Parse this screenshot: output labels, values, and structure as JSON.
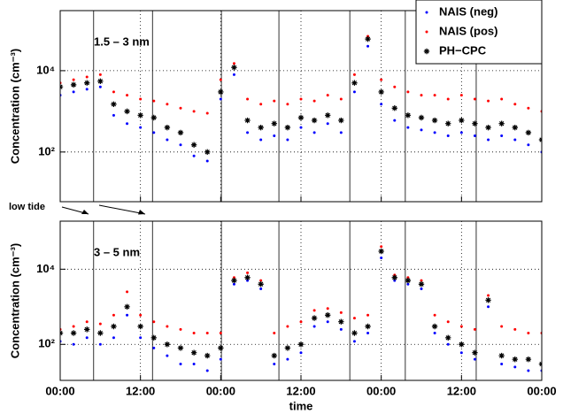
{
  "chart_data": [
    {
      "type": "scatter",
      "panel_label": "1.5 – 3 nm",
      "ylabel": "Concentration (cm⁻³)",
      "log_y": true,
      "grid": true,
      "legend": "upper right",
      "ylim": [
        6,
        300000
      ],
      "yticks": [
        {
          "value": 100,
          "label": "10²"
        },
        {
          "value": 10000,
          "label": "10⁴"
        }
      ],
      "xlim": [
        0,
        72
      ],
      "x": [
        0,
        2,
        4,
        6,
        8,
        10,
        12,
        14,
        16,
        18,
        20,
        22,
        24,
        26,
        28,
        30,
        32,
        34,
        36,
        38,
        40,
        42,
        44,
        46,
        48,
        50,
        52,
        54,
        56,
        58,
        60,
        62,
        64,
        66,
        68,
        70,
        72
      ],
      "series": [
        {
          "name": "NAIS (neg)",
          "color": "#0000ff",
          "marker": "dot",
          "values": [
            2500,
            3000,
            3500,
            4000,
            800,
            500,
            400,
            300,
            200,
            150,
            80,
            60,
            2000,
            8000,
            300,
            200,
            250,
            200,
            400,
            300,
            500,
            300,
            3000,
            40000,
            1500,
            600,
            400,
            350,
            300,
            250,
            300,
            250,
            200,
            250,
            200,
            150,
            100
          ]
        },
        {
          "name": "NAIS (pos)",
          "color": "#ff0000",
          "marker": "dot",
          "values": [
            5000,
            6000,
            7000,
            8000,
            3000,
            2500,
            2000,
            1800,
            1500,
            1200,
            1000,
            900,
            6000,
            15000,
            2000,
            1500,
            1800,
            1500,
            2000,
            1800,
            2500,
            2000,
            8000,
            70000,
            6000,
            4000,
            3000,
            2500,
            2500,
            2000,
            2500,
            2000,
            1800,
            2000,
            1500,
            1200,
            1000
          ]
        },
        {
          "name": "PH−CPC",
          "color": "#000000",
          "marker": "asterisk",
          "values": [
            4000,
            4500,
            5000,
            5500,
            1500,
            1000,
            800,
            700,
            400,
            300,
            150,
            100,
            3000,
            12000,
            600,
            400,
            500,
            400,
            700,
            600,
            800,
            600,
            5000,
            60000,
            3000,
            1200,
            800,
            700,
            600,
            500,
            600,
            500,
            400,
            500,
            400,
            300,
            200
          ]
        }
      ]
    },
    {
      "type": "scatter",
      "panel_label": "3 – 5 nm",
      "ylabel": "Concentration (cm⁻³)",
      "xlabel": "time",
      "log_y": true,
      "grid": true,
      "ylim": [
        11,
        190000
      ],
      "yticks": [
        {
          "value": 100,
          "label": "10²"
        },
        {
          "value": 10000,
          "label": "10⁴"
        }
      ],
      "xlim": [
        0,
        72
      ],
      "xticks": [
        {
          "value": 0,
          "label": "00:00"
        },
        {
          "value": 12,
          "label": "12:00"
        },
        {
          "value": 24,
          "label": "00:00"
        },
        {
          "value": 36,
          "label": "12:00"
        },
        {
          "value": 48,
          "label": "00:00"
        },
        {
          "value": 60,
          "label": "12:00"
        },
        {
          "value": 72,
          "label": "00:00"
        }
      ],
      "x": [
        0,
        2,
        4,
        6,
        8,
        10,
        12,
        14,
        16,
        18,
        20,
        22,
        24,
        26,
        28,
        30,
        32,
        34,
        36,
        38,
        40,
        42,
        44,
        46,
        48,
        50,
        52,
        54,
        56,
        58,
        60,
        62,
        64,
        66,
        68,
        70,
        72
      ],
      "series": [
        {
          "color": "#0000ff",
          "marker": "dot",
          "values": [
            120,
            100,
            150,
            100,
            150,
            600,
            150,
            80,
            50,
            30,
            30,
            20,
            40,
            4000,
            5000,
            3000,
            30,
            40,
            60,
            300,
            400,
            250,
            120,
            200,
            20000,
            5000,
            4000,
            3000,
            200,
            100,
            60,
            40,
            1000,
            30,
            25,
            20,
            20
          ]
        },
        {
          "color": "#ff0000",
          "marker": "dot",
          "values": [
            250,
            300,
            400,
            350,
            600,
            2500,
            600,
            400,
            300,
            250,
            200,
            200,
            200,
            6000,
            8000,
            5000,
            200,
            300,
            400,
            800,
            900,
            700,
            500,
            600,
            40000,
            7000,
            6000,
            5000,
            600,
            400,
            300,
            250,
            2000,
            300,
            250,
            200,
            200
          ]
        },
        {
          "color": "#000000",
          "marker": "asterisk",
          "values": [
            200,
            200,
            250,
            200,
            300,
            1000,
            300,
            150,
            100,
            80,
            60,
            50,
            80,
            5000,
            6000,
            4000,
            50,
            80,
            100,
            500,
            600,
            400,
            200,
            300,
            30000,
            6000,
            5000,
            4000,
            300,
            150,
            100,
            60,
            1500,
            50,
            40,
            40,
            30
          ]
        }
      ]
    }
  ],
  "low_tide": {
    "label": "low tide",
    "x": [
      5.0,
      13.8,
      24.1,
      32.7,
      43.3,
      51.6,
      62.2
    ]
  }
}
